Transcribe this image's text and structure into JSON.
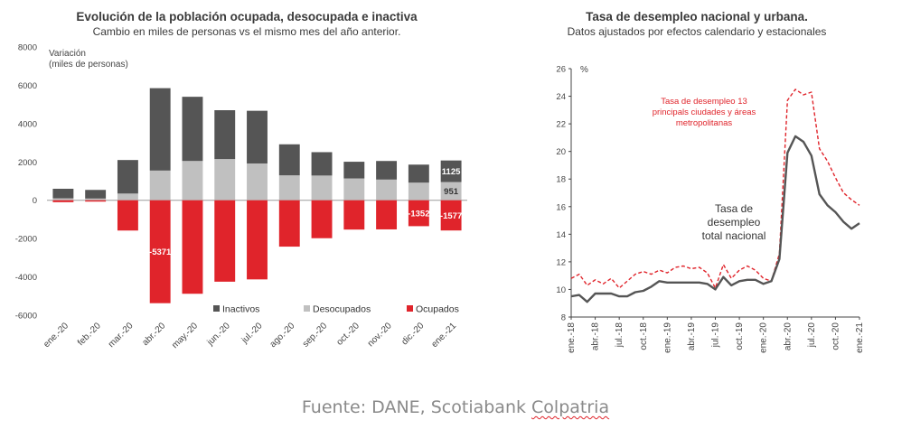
{
  "chart_data": [
    {
      "type": "bar",
      "stacked": true,
      "title": "Evolución de la población ocupada, desocupada e inactiva",
      "subtitle": "Cambio en miles de personas vs el mismo mes del año anterior.",
      "ylabel": "Variación\n(miles de personas)",
      "ylim": [
        -6000,
        8000
      ],
      "yticks": [
        "8000",
        "6000",
        "4000",
        "2000",
        "0",
        "-2000",
        "-4000",
        "-6000"
      ],
      "grid": false,
      "legend_position": "bottom-right",
      "categories": [
        "ene.-20",
        "feb.-20",
        "mar.-20",
        "abr.-20",
        "may.-20",
        "jun.-20",
        "jul.-20",
        "ago.-20",
        "sep.-20",
        "oct.-20",
        "nov.-20",
        "dic.-20",
        "ene.-21"
      ],
      "series": [
        {
          "name": "Inactivos",
          "color": "#555555",
          "values": [
            500,
            450,
            1750,
            4300,
            3350,
            2550,
            2750,
            1620,
            1220,
            870,
            970,
            940,
            1125
          ]
        },
        {
          "name": "Desocupados",
          "color": "#c0c0c0",
          "values": [
            100,
            90,
            350,
            1550,
            2050,
            2150,
            1920,
            1300,
            1290,
            1140,
            1080,
            920,
            951
          ]
        },
        {
          "name": "Ocupados",
          "color": "#e0242b",
          "values": [
            -100,
            -70,
            -1580,
            -5371,
            -4880,
            -4250,
            -4130,
            -2420,
            -1980,
            -1530,
            -1520,
            -1352,
            -1577
          ]
        }
      ],
      "data_labels": [
        {
          "text": "1125",
          "category": "ene.-21",
          "series": "Inactivos"
        },
        {
          "text": "951",
          "category": "ene.-21",
          "series": "Desocupados"
        },
        {
          "text": "-5371",
          "category": "abr.-20",
          "series": "Ocupados"
        },
        {
          "text": "-1352",
          "category": "dic.-20",
          "series": "Ocupados"
        },
        {
          "text": "-1577",
          "category": "ene.-21",
          "series": "Ocupados"
        }
      ]
    },
    {
      "type": "line",
      "title": "Tasa de desempleo nacional y urbana.",
      "subtitle": "Datos ajustados por efectos calendario y estacionales",
      "unit": "%",
      "ylim": [
        8,
        26
      ],
      "yticks": [
        "26",
        "24",
        "22",
        "20",
        "18",
        "16",
        "14",
        "12",
        "10",
        "8"
      ],
      "xticks": [
        "ene.-18",
        "abr.-18",
        "jul.-18",
        "oct.-18",
        "ene.-19",
        "abr.-19",
        "jul.-19",
        "oct.-19",
        "ene.-20",
        "abr.-20",
        "jul.-20",
        "oct.-20",
        "ene.-21"
      ],
      "grid": false,
      "x": [
        "ene.-18",
        "feb.-18",
        "mar.-18",
        "abr.-18",
        "may.-18",
        "jun.-18",
        "jul.-18",
        "ago.-18",
        "sep.-18",
        "oct.-18",
        "nov.-18",
        "dic.-18",
        "ene.-19",
        "feb.-19",
        "mar.-19",
        "abr.-19",
        "may.-19",
        "jun.-19",
        "jul.-19",
        "ago.-19",
        "sep.-19",
        "oct.-19",
        "nov.-19",
        "dic.-19",
        "ene.-20",
        "feb.-20",
        "mar.-20",
        "abr.-20",
        "may.-20",
        "jun.-20",
        "jul.-20",
        "ago.-20",
        "sep.-20",
        "oct.-20",
        "nov.-20",
        "dic.-20",
        "ene.-21"
      ],
      "series": [
        {
          "name": "Tasa de desempleo 13 principals ciudades y áreas metropolitanas",
          "color": "#e0242b",
          "dash": "dashed",
          "values": [
            10.8,
            11.1,
            10.3,
            10.7,
            10.4,
            10.8,
            10.1,
            10.6,
            11.1,
            11.3,
            11.1,
            11.4,
            11.2,
            11.6,
            11.7,
            11.5,
            11.6,
            11.2,
            10.1,
            11.8,
            10.8,
            11.4,
            11.7,
            11.4,
            10.8,
            10.6,
            12.6,
            23.7,
            24.5,
            24.1,
            24.3,
            20.2,
            19.3,
            18.1,
            17.0,
            16.5,
            16.1
          ]
        },
        {
          "name": "Tasa de desempleo total nacional",
          "color": "#555555",
          "dash": "solid",
          "values": [
            9.5,
            9.6,
            9.1,
            9.7,
            9.7,
            9.7,
            9.5,
            9.5,
            9.8,
            9.9,
            10.2,
            10.6,
            10.5,
            10.5,
            10.5,
            10.5,
            10.5,
            10.4,
            10.0,
            10.9,
            10.3,
            10.6,
            10.7,
            10.7,
            10.4,
            10.6,
            12.2,
            19.9,
            21.1,
            20.7,
            19.7,
            16.9,
            16.1,
            15.6,
            14.9,
            14.4,
            14.8
          ]
        }
      ],
      "annotations": [
        {
          "text": "Tasa de desempleo 13\nprincipals ciudades y áreas\nmetropolitanas",
          "color": "#e0242b"
        },
        {
          "text": "Tasa de\ndesempleo\ntotal nacional",
          "color": "#333333"
        }
      ]
    }
  ],
  "source": {
    "prefix": "Fuente: DANE, Scotiabank ",
    "underlined": "Colpatria"
  }
}
